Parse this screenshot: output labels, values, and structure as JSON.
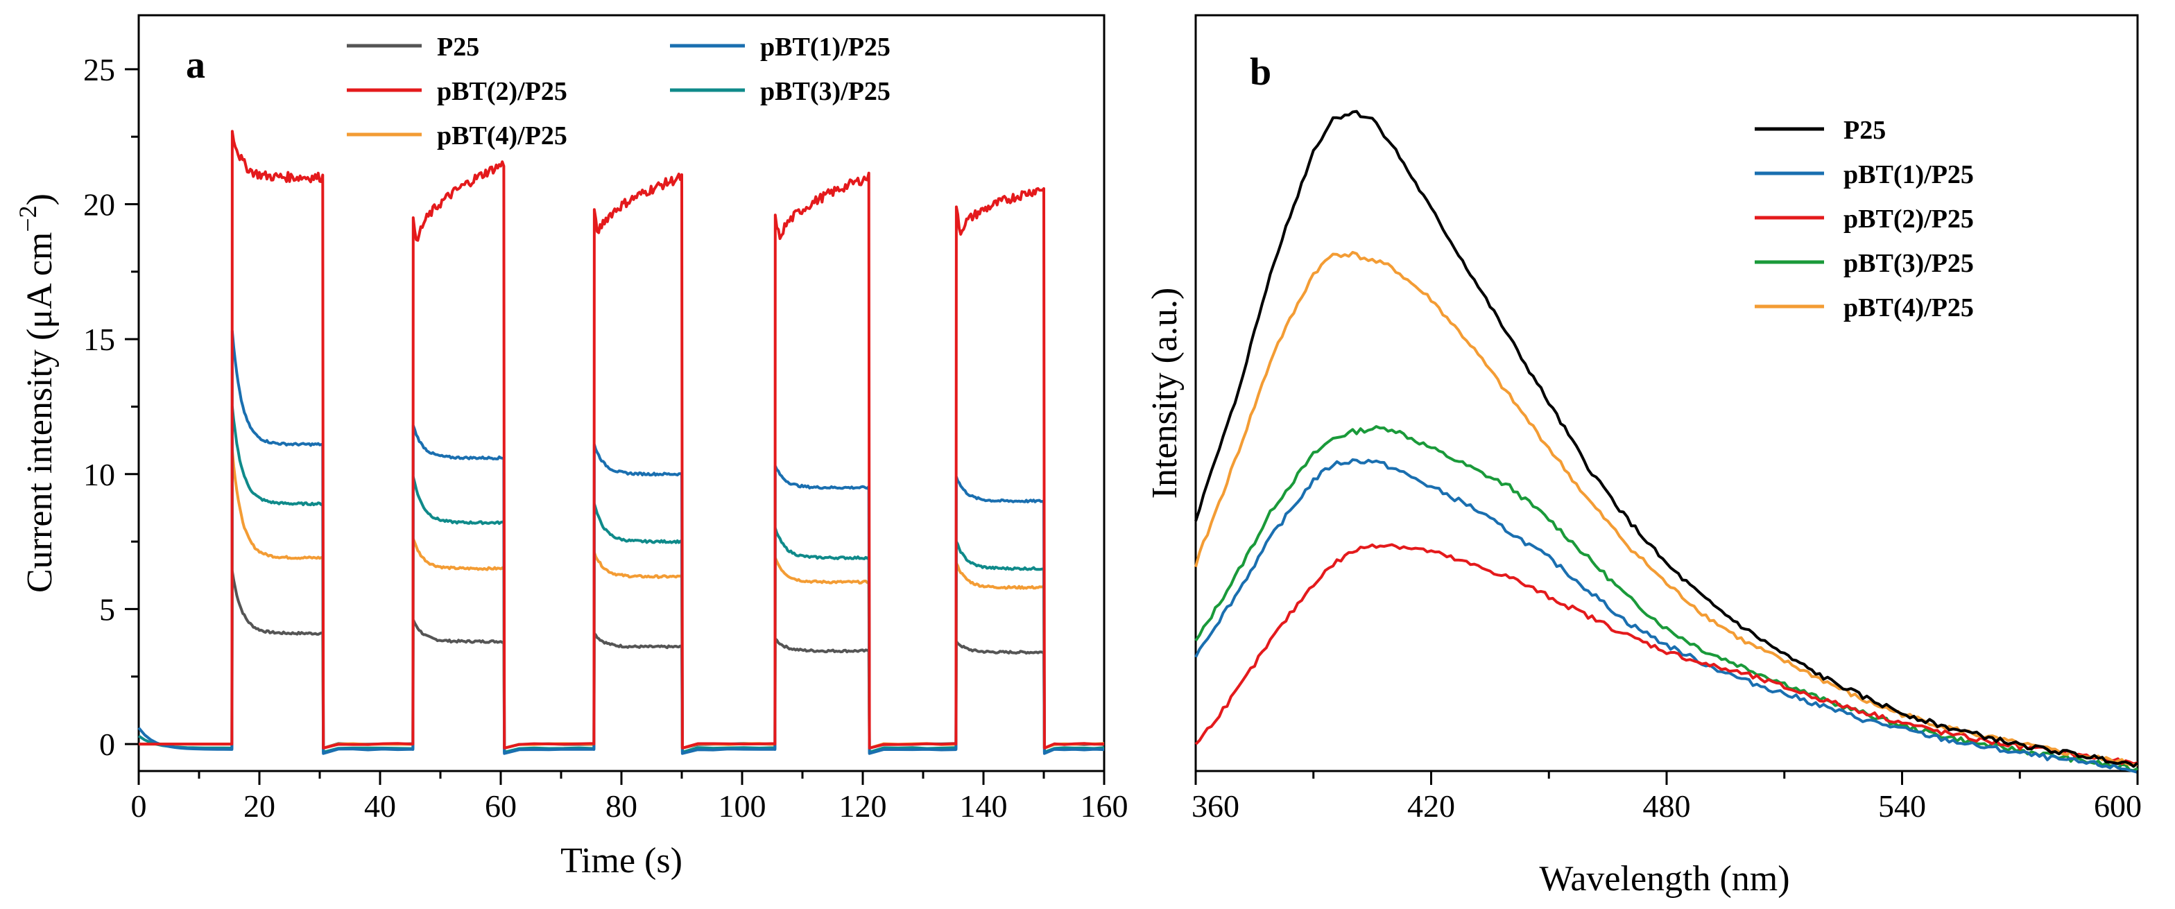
{
  "figure": {
    "panels": [
      "a",
      "b"
    ]
  },
  "chart_data": [
    {
      "panel": "a",
      "type": "line",
      "title": "",
      "xlabel": "Time (s)",
      "ylabel": "Current intensity (μA cm",
      "ylabel_sup": "−2",
      "ylabel_close": ")",
      "xlim": [
        0,
        160
      ],
      "ylim": [
        -1,
        27
      ],
      "xticks": [
        0,
        20,
        40,
        60,
        80,
        100,
        120,
        140,
        160
      ],
      "yticks": [
        0,
        5,
        10,
        15,
        20,
        25
      ],
      "legend_position": "top",
      "light_on_intervals": [
        [
          15.5,
          30.5
        ],
        [
          45.5,
          60.5
        ],
        [
          75.5,
          90
        ],
        [
          105.5,
          121
        ],
        [
          135.5,
          150
        ]
      ],
      "series": [
        {
          "name": "P25",
          "color": "#555555",
          "dark": 0.0,
          "initial_dark": 0.0,
          "on": [
            {
              "spike": 6.4,
              "steady": 4.1
            },
            {
              "spike": 4.6,
              "steady": 3.8
            },
            {
              "spike": 4.1,
              "steady": 3.6
            },
            {
              "spike": 3.9,
              "steady": 3.45
            },
            {
              "spike": 3.8,
              "steady": 3.4
            }
          ]
        },
        {
          "name": "pBT(1)/P25",
          "color": "#1a6fb0",
          "dark": -0.2,
          "initial_dark": 0.6,
          "on": [
            {
              "spike": 15.3,
              "steady": 11.1
            },
            {
              "spike": 11.8,
              "steady": 10.6
            },
            {
              "spike": 11.1,
              "steady": 10.0
            },
            {
              "spike": 10.3,
              "steady": 9.5
            },
            {
              "spike": 9.9,
              "steady": 9.0
            }
          ]
        },
        {
          "name": "pBT(2)/P25",
          "color": "#e41a1c",
          "dark": 0.0,
          "initial_dark": 0.0,
          "on": [
            {
              "spike": 22.7,
              "steady": 21.0
            },
            {
              "spike": 19.5,
              "steady": 21.5
            },
            {
              "spike": 19.8,
              "steady": 21.0
            },
            {
              "spike": 19.6,
              "steady": 21.0
            },
            {
              "spike": 19.9,
              "steady": 20.6
            }
          ]
        },
        {
          "name": "pBT(3)/P25",
          "color": "#0f8a8a",
          "dark": -0.15,
          "initial_dark": 0.3,
          "on": [
            {
              "spike": 12.5,
              "steady": 8.9
            },
            {
              "spike": 9.9,
              "steady": 8.2
            },
            {
              "spike": 8.9,
              "steady": 7.5
            },
            {
              "spike": 8.0,
              "steady": 6.9
            },
            {
              "spike": 7.5,
              "steady": 6.5
            }
          ]
        },
        {
          "name": "pBT(4)/P25",
          "color": "#f39c34",
          "dark": 0.0,
          "initial_dark": 0.0,
          "on": [
            {
              "spike": 10.9,
              "steady": 6.9
            },
            {
              "spike": 7.6,
              "steady": 6.5
            },
            {
              "spike": 7.1,
              "steady": 6.2
            },
            {
              "spike": 6.9,
              "steady": 6.0
            },
            {
              "spike": 6.7,
              "steady": 5.8
            }
          ]
        }
      ]
    },
    {
      "panel": "b",
      "type": "line",
      "title": "",
      "xlabel": "Wavelength (nm)",
      "ylabel": "Intensity (a.u.)",
      "xlim": [
        360,
        600
      ],
      "ylim": [
        -0.02,
        1.15
      ],
      "xticks": [
        360,
        420,
        480,
        540,
        600
      ],
      "yticks": [],
      "legend_position": "top-right",
      "series": [
        {
          "name": "P25",
          "color": "#000000",
          "x": [
            360,
            370,
            380,
            390,
            395,
            400,
            405,
            410,
            420,
            430,
            440,
            450,
            460,
            470,
            480,
            490,
            500,
            510,
            520,
            530,
            540,
            550,
            560,
            570,
            580,
            590,
            600
          ],
          "y": [
            0.37,
            0.55,
            0.77,
            0.94,
            0.99,
            1.0,
            0.99,
            0.95,
            0.85,
            0.75,
            0.65,
            0.55,
            0.45,
            0.37,
            0.3,
            0.245,
            0.2,
            0.16,
            0.125,
            0.095,
            0.07,
            0.05,
            0.035,
            0.02,
            0.01,
            0.0,
            -0.01
          ]
        },
        {
          "name": "pBT(1)/P25",
          "color": "#1a6fb0",
          "x": [
            360,
            370,
            380,
            390,
            395,
            400,
            405,
            410,
            420,
            430,
            440,
            450,
            460,
            470,
            480,
            490,
            500,
            510,
            520,
            530,
            540,
            550,
            560,
            570,
            580,
            590,
            600
          ],
          "y": [
            0.16,
            0.25,
            0.35,
            0.43,
            0.455,
            0.46,
            0.46,
            0.45,
            0.42,
            0.39,
            0.35,
            0.31,
            0.26,
            0.21,
            0.175,
            0.145,
            0.12,
            0.1,
            0.08,
            0.06,
            0.045,
            0.03,
            0.018,
            0.008,
            -0.002,
            -0.01,
            -0.02
          ]
        },
        {
          "name": "pBT(2)/P25",
          "color": "#e41a1c",
          "x": [
            360,
            370,
            380,
            390,
            395,
            400,
            405,
            410,
            420,
            430,
            440,
            450,
            460,
            470,
            480,
            490,
            500,
            510,
            520,
            530,
            540,
            550,
            560,
            570,
            580,
            590,
            600
          ],
          "y": [
            0.02,
            0.1,
            0.19,
            0.27,
            0.3,
            0.32,
            0.33,
            0.33,
            0.32,
            0.3,
            0.28,
            0.25,
            0.22,
            0.19,
            0.165,
            0.145,
            0.13,
            0.11,
            0.09,
            0.072,
            0.055,
            0.04,
            0.028,
            0.018,
            0.01,
            0.0,
            -0.01
          ]
        },
        {
          "name": "pBT(3)/P25",
          "color": "#1a9a3a",
          "x": [
            360,
            370,
            380,
            390,
            395,
            400,
            405,
            410,
            420,
            430,
            440,
            450,
            460,
            470,
            480,
            490,
            500,
            510,
            520,
            530,
            540,
            550,
            560,
            570,
            580,
            590,
            600
          ],
          "y": [
            0.18,
            0.28,
            0.39,
            0.47,
            0.495,
            0.505,
            0.51,
            0.51,
            0.48,
            0.45,
            0.42,
            0.37,
            0.31,
            0.25,
            0.2,
            0.165,
            0.14,
            0.115,
            0.09,
            0.07,
            0.05,
            0.035,
            0.022,
            0.012,
            0.002,
            -0.008,
            -0.018
          ]
        },
        {
          "name": "pBT(4)/P25",
          "color": "#f39c34",
          "x": [
            360,
            370,
            380,
            390,
            395,
            400,
            405,
            410,
            420,
            430,
            440,
            450,
            460,
            470,
            480,
            490,
            500,
            510,
            520,
            530,
            540,
            550,
            560,
            570,
            580,
            590,
            600
          ],
          "y": [
            0.3,
            0.46,
            0.63,
            0.75,
            0.78,
            0.78,
            0.77,
            0.76,
            0.71,
            0.64,
            0.56,
            0.48,
            0.4,
            0.33,
            0.27,
            0.22,
            0.18,
            0.15,
            0.12,
            0.09,
            0.068,
            0.05,
            0.035,
            0.022,
            0.01,
            0.0,
            -0.01
          ]
        }
      ]
    }
  ]
}
